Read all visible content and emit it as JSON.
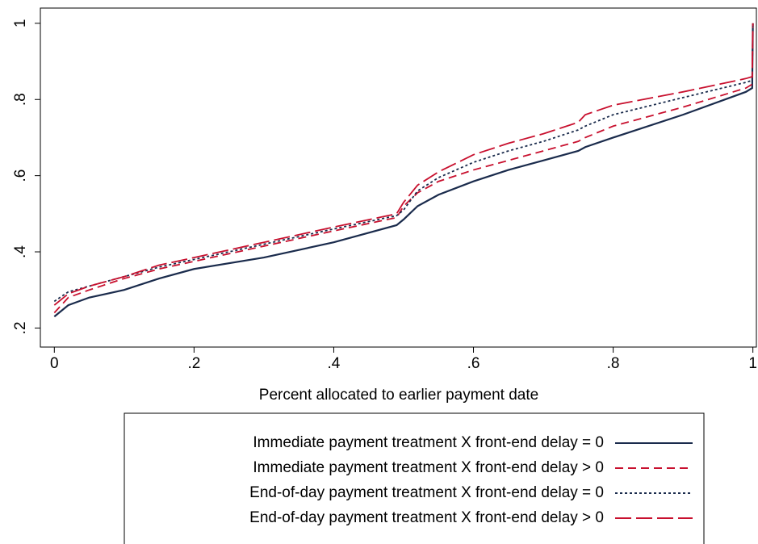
{
  "chart_data": {
    "type": "line",
    "x_label": "Percent allocated to earlier payment date",
    "x": [
      0,
      0.02,
      0.05,
      0.1,
      0.15,
      0.2,
      0.3,
      0.4,
      0.49,
      0.5,
      0.52,
      0.55,
      0.6,
      0.65,
      0.7,
      0.75,
      0.76,
      0.8,
      0.9,
      0.99,
      0.999,
      1
    ],
    "series": [
      {
        "name": "Immediate payment treatment X front-end delay = 0",
        "color": "#1a2b4c",
        "style": "solid",
        "values": [
          0.23,
          0.26,
          0.28,
          0.3,
          0.33,
          0.355,
          0.385,
          0.425,
          0.47,
          0.485,
          0.52,
          0.55,
          0.585,
          0.615,
          0.64,
          0.665,
          0.675,
          0.7,
          0.76,
          0.82,
          0.83,
          1
        ]
      },
      {
        "name": "Immediate payment treatment X front-end delay > 0",
        "color": "#c8102e",
        "style": "dash",
        "values": [
          0.24,
          0.28,
          0.3,
          0.33,
          0.355,
          0.375,
          0.415,
          0.455,
          0.49,
          0.52,
          0.555,
          0.585,
          0.615,
          0.64,
          0.665,
          0.69,
          0.7,
          0.73,
          0.78,
          0.83,
          0.84,
          1
        ]
      },
      {
        "name": "End-of-day payment treatment X front-end delay = 0",
        "color": "#1a2b4c",
        "style": "dot",
        "values": [
          0.27,
          0.295,
          0.31,
          0.335,
          0.36,
          0.38,
          0.42,
          0.46,
          0.495,
          0.51,
          0.56,
          0.595,
          0.635,
          0.665,
          0.69,
          0.72,
          0.73,
          0.76,
          0.805,
          0.845,
          0.85,
          1
        ]
      },
      {
        "name": "End-of-day payment treatment X front-end delay > 0",
        "color": "#c8102e",
        "style": "longdash",
        "values": [
          0.26,
          0.29,
          0.31,
          0.335,
          0.365,
          0.385,
          0.425,
          0.465,
          0.5,
          0.53,
          0.575,
          0.61,
          0.655,
          0.685,
          0.71,
          0.74,
          0.76,
          0.785,
          0.82,
          0.855,
          0.86,
          1
        ]
      }
    ],
    "xlim": [
      -0.02,
      1.005
    ],
    "ylim": [
      0.15,
      1.04
    ],
    "xticks": [
      0,
      {
        "value": 0.2,
        "label": ".2"
      },
      {
        "value": 0.4,
        "label": ".4"
      },
      {
        "value": 0.6,
        "label": ".6"
      },
      {
        "value": 0.8,
        "label": ".8"
      },
      1
    ],
    "yticks": [
      {
        "value": 0.2,
        "label": ".2"
      },
      {
        "value": 0.4,
        "label": ".4"
      },
      {
        "value": 0.6,
        "label": ".6"
      },
      {
        "value": 0.8,
        "label": ".8"
      },
      1
    ],
    "grid": false,
    "legend_position": "bottom"
  }
}
